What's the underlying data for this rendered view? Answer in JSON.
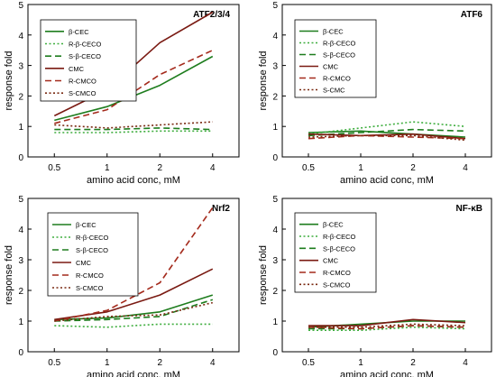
{
  "chart_data": [
    {
      "type": "line",
      "title": "ATF2/3/4",
      "xlabel": "amino acid conc, mM",
      "ylabel": "response fold",
      "categories": [
        "0.5",
        "1",
        "2",
        "4"
      ],
      "yticks": [
        "0",
        "1",
        "2",
        "3",
        "4",
        "5"
      ],
      "ylim": [
        0,
        5
      ],
      "legend_position": "top-left",
      "series": [
        {
          "name": "β-CEC",
          "values": [
            1.2,
            1.65,
            2.35,
            3.3
          ]
        },
        {
          "name": "R-β-CECO",
          "values": [
            0.8,
            0.8,
            0.85,
            0.85
          ]
        },
        {
          "name": "S-β-CECO",
          "values": [
            0.9,
            0.9,
            0.95,
            0.9
          ]
        },
        {
          "name": "CMC",
          "values": [
            1.35,
            2.2,
            3.75,
            4.75
          ]
        },
        {
          "name": "R-CMCO",
          "values": [
            1.1,
            1.55,
            2.7,
            3.5
          ]
        },
        {
          "name": "S-CMCO",
          "values": [
            1.05,
            0.95,
            1.05,
            1.15
          ]
        }
      ]
    },
    {
      "type": "line",
      "title": "ATF6",
      "xlabel": "amino acid conc, mM",
      "ylabel": "response fold",
      "categories": [
        "0.5",
        "1",
        "2",
        "4"
      ],
      "yticks": [
        "0",
        "1",
        "2",
        "3",
        "4",
        "5"
      ],
      "ylim": [
        0,
        5
      ],
      "legend_position": "top-left",
      "series": [
        {
          "name": "β-CEC",
          "values": [
            0.8,
            0.85,
            0.75,
            0.65
          ]
        },
        {
          "name": "R-β-CECO",
          "values": [
            0.75,
            0.95,
            1.15,
            1.0
          ]
        },
        {
          "name": "S-β-CECO",
          "values": [
            0.7,
            0.8,
            0.9,
            0.85
          ]
        },
        {
          "name": "CMC",
          "values": [
            0.75,
            0.7,
            0.75,
            0.6
          ]
        },
        {
          "name": "R-CMCO",
          "values": [
            0.6,
            0.7,
            0.65,
            0.6
          ]
        },
        {
          "name": "S-CMC",
          "values": [
            0.65,
            0.7,
            0.7,
            0.55
          ]
        }
      ]
    },
    {
      "type": "line",
      "title": "Nrf2",
      "xlabel": "amino acid conc, mM",
      "ylabel": "response fold",
      "categories": [
        "0.5",
        "1",
        "2",
        "4"
      ],
      "yticks": [
        "0",
        "1",
        "2",
        "3",
        "4",
        "5"
      ],
      "ylim": [
        0,
        5
      ],
      "legend_position": "top-left",
      "series": [
        {
          "name": "β-CEC",
          "values": [
            1.05,
            1.1,
            1.3,
            1.85
          ]
        },
        {
          "name": "R-β-CECO",
          "values": [
            0.85,
            0.8,
            0.9,
            0.9
          ]
        },
        {
          "name": "S-β-CECO",
          "values": [
            1.0,
            1.05,
            1.15,
            1.7
          ]
        },
        {
          "name": "CMC",
          "values": [
            1.05,
            1.3,
            1.85,
            2.7
          ]
        },
        {
          "name": "R-CMCO",
          "values": [
            1.0,
            1.35,
            2.25,
            4.7
          ]
        },
        {
          "name": "S-CMCO",
          "values": [
            1.0,
            1.15,
            1.2,
            1.6
          ]
        }
      ]
    },
    {
      "type": "line",
      "title": "NF-κB",
      "xlabel": "amino acid conc, mM",
      "ylabel": "response fold",
      "categories": [
        "0.5",
        "1",
        "2",
        "4"
      ],
      "yticks": [
        "0",
        "1",
        "2",
        "3",
        "4",
        "5"
      ],
      "ylim": [
        0,
        5
      ],
      "legend_position": "top-left",
      "series": [
        {
          "name": "β-CEC",
          "values": [
            0.8,
            0.9,
            1.0,
            1.0
          ]
        },
        {
          "name": "R-β-CECO",
          "values": [
            0.7,
            0.7,
            0.8,
            0.75
          ]
        },
        {
          "name": "S-β-CECO",
          "values": [
            0.75,
            0.75,
            0.85,
            0.8
          ]
        },
        {
          "name": "CMC",
          "values": [
            0.85,
            0.85,
            1.05,
            0.95
          ]
        },
        {
          "name": "R-CMCO",
          "values": [
            0.8,
            0.75,
            0.85,
            0.8
          ]
        },
        {
          "name": "S-CMCO",
          "values": [
            0.8,
            0.8,
            0.9,
            0.85
          ]
        }
      ]
    }
  ],
  "series_styles": [
    {
      "color": "#1e7d1e",
      "dash": "solid"
    },
    {
      "color": "#3fae3f",
      "dash": "dotted"
    },
    {
      "color": "#1e7d1e",
      "dash": "dashed"
    },
    {
      "color": "#7a1a12",
      "dash": "solid"
    },
    {
      "color": "#a42a1c",
      "dash": "dashed"
    },
    {
      "color": "#7a2a12",
      "dash": "dotted"
    }
  ]
}
